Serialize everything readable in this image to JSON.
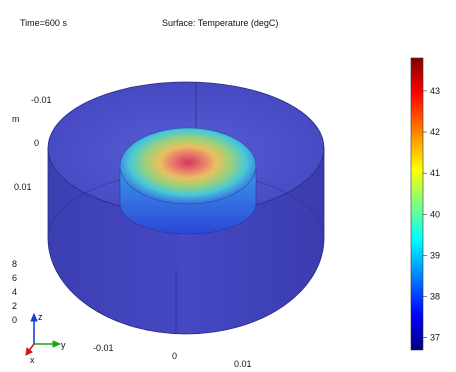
{
  "header": {
    "time_label": "Time=600 s",
    "plot_title": "Surface: Temperature (degC)"
  },
  "axes": {
    "unit_label": "m",
    "y_ticks": [
      "-0.01",
      "0",
      "0.01"
    ],
    "z_ticks": [
      "8",
      "6",
      "4",
      "2",
      "0"
    ],
    "x_ticks": [
      "-0.01",
      "0",
      "0.01"
    ]
  },
  "colorbar": {
    "ticks": [
      "43",
      "42",
      "41",
      "40",
      "39",
      "38",
      "37"
    ],
    "min": 36.7,
    "max": 43.8,
    "colors": [
      "#00007f",
      "#0000ff",
      "#00ffff",
      "#ffff00",
      "#ff0000",
      "#7f0000"
    ]
  },
  "triad": {
    "z_label": "z",
    "y_label": "y",
    "x_label": "x",
    "z_color": "#1a3fd6",
    "y_color": "#14a614",
    "x_color": "#d41414"
  }
}
